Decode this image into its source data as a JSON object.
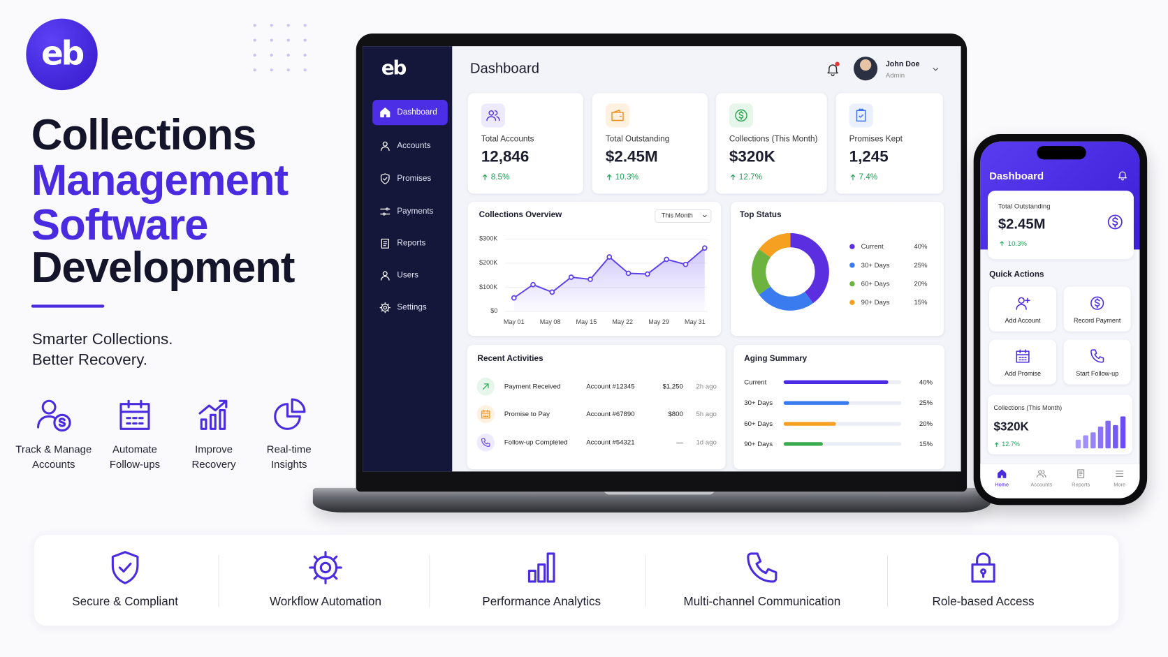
{
  "logo": "eb",
  "hero": {
    "title": [
      "Collections",
      "Management",
      "Software",
      "Development"
    ],
    "tagline": [
      "Smarter Collections.",
      "Better Recovery."
    ]
  },
  "features": [
    [
      "Track & Manage",
      "Accounts"
    ],
    [
      "Automate",
      "Follow-ups"
    ],
    [
      "Improve",
      "Recovery"
    ],
    [
      "Real-time",
      "Insights"
    ]
  ],
  "dashboard": {
    "logo": "eb",
    "title": "Dashboard",
    "user": {
      "name": "John Doe",
      "role": "Admin"
    },
    "nav": [
      "Dashboard",
      "Accounts",
      "Promises",
      "Payments",
      "Reports",
      "Users",
      "Settings"
    ],
    "kpis": [
      {
        "label": "Total Accounts",
        "value": "12,846",
        "change": "8.5%"
      },
      {
        "label": "Total Outstanding",
        "value": "$2.45M",
        "change": "10.3%"
      },
      {
        "label": "Collections (This Month)",
        "value": "$320K",
        "change": "12.7%"
      },
      {
        "label": "Promises Kept",
        "value": "1,245",
        "change": "7.4%"
      }
    ],
    "overview": {
      "type": "line",
      "title": "Collections Overview",
      "filter": "This Month",
      "x_labels": [
        "May 01",
        "May 08",
        "May 15",
        "May 22",
        "May 29",
        "May 31"
      ],
      "values": [
        56000,
        111000,
        80000,
        142000,
        133000,
        226000,
        158000,
        155000,
        216000,
        195000,
        263000
      ],
      "ylim": [
        0,
        300000
      ],
      "yticks": [
        {
          "value": 0,
          "label": "$0"
        },
        {
          "value": 100000,
          "label": "$100K"
        },
        {
          "value": 200000,
          "label": "$200K"
        },
        {
          "value": 300000,
          "label": "$300K"
        }
      ],
      "color": "#5b3df0",
      "grid": true
    },
    "top_status": {
      "type": "pie",
      "title": "Top Status",
      "categories": [
        "Current",
        "30+ Days",
        "60+ Days",
        "90+ Days"
      ],
      "values": [
        40,
        25,
        20,
        15
      ],
      "value_labels": [
        "40%",
        "25%",
        "20%",
        "15%"
      ],
      "colors": [
        "#5b2ee0",
        "#3b7bf0",
        "#6cb33f",
        "#f5a020"
      ]
    },
    "recent": {
      "title": "Recent Activities",
      "rows": [
        [
          "Payment Received",
          "Account #12345",
          "$1,250",
          "2h ago"
        ],
        [
          "Promise to Pay",
          "Account #67890",
          "$800",
          "5h ago"
        ],
        [
          "Follow-up Completed",
          "Account #54321",
          "—",
          "1d ago"
        ]
      ]
    },
    "aging": {
      "type": "bar",
      "title": "Aging Summary",
      "categories": [
        "Current",
        "30+ Days",
        "60+ Days",
        "90+ Days"
      ],
      "values": [
        40,
        25,
        20,
        15
      ],
      "value_labels": [
        "40%",
        "25%",
        "20%",
        "15%"
      ],
      "colors": [
        "#4b2be3",
        "#3b7bf0",
        "#f5a020",
        "#3bab4f"
      ],
      "xlim": [
        0,
        45
      ]
    }
  },
  "phone": {
    "title": "Dashboard",
    "outstanding": {
      "label": "Total Outstanding",
      "value": "$2.45M",
      "change": "10.3%"
    },
    "quick_actions": {
      "title": "Quick Actions",
      "items": [
        "Add Account",
        "Record Payment",
        "Add Promise",
        "Start Follow-up"
      ]
    },
    "collections": {
      "label": "Collections (This Month)",
      "value": "$320K",
      "change": "12.7%",
      "type": "bar",
      "values": [
        12,
        18,
        22,
        30,
        38,
        32,
        44
      ],
      "ylim": [
        0,
        46
      ],
      "color": "#6a4cf5"
    },
    "tabs": [
      "Home",
      "Accounts",
      "Reports",
      "More"
    ]
  },
  "highlights": [
    "Secure & Compliant",
    "Workflow Automation",
    "Performance Analytics",
    "Multi-channel Communication",
    "Role-based Access"
  ]
}
